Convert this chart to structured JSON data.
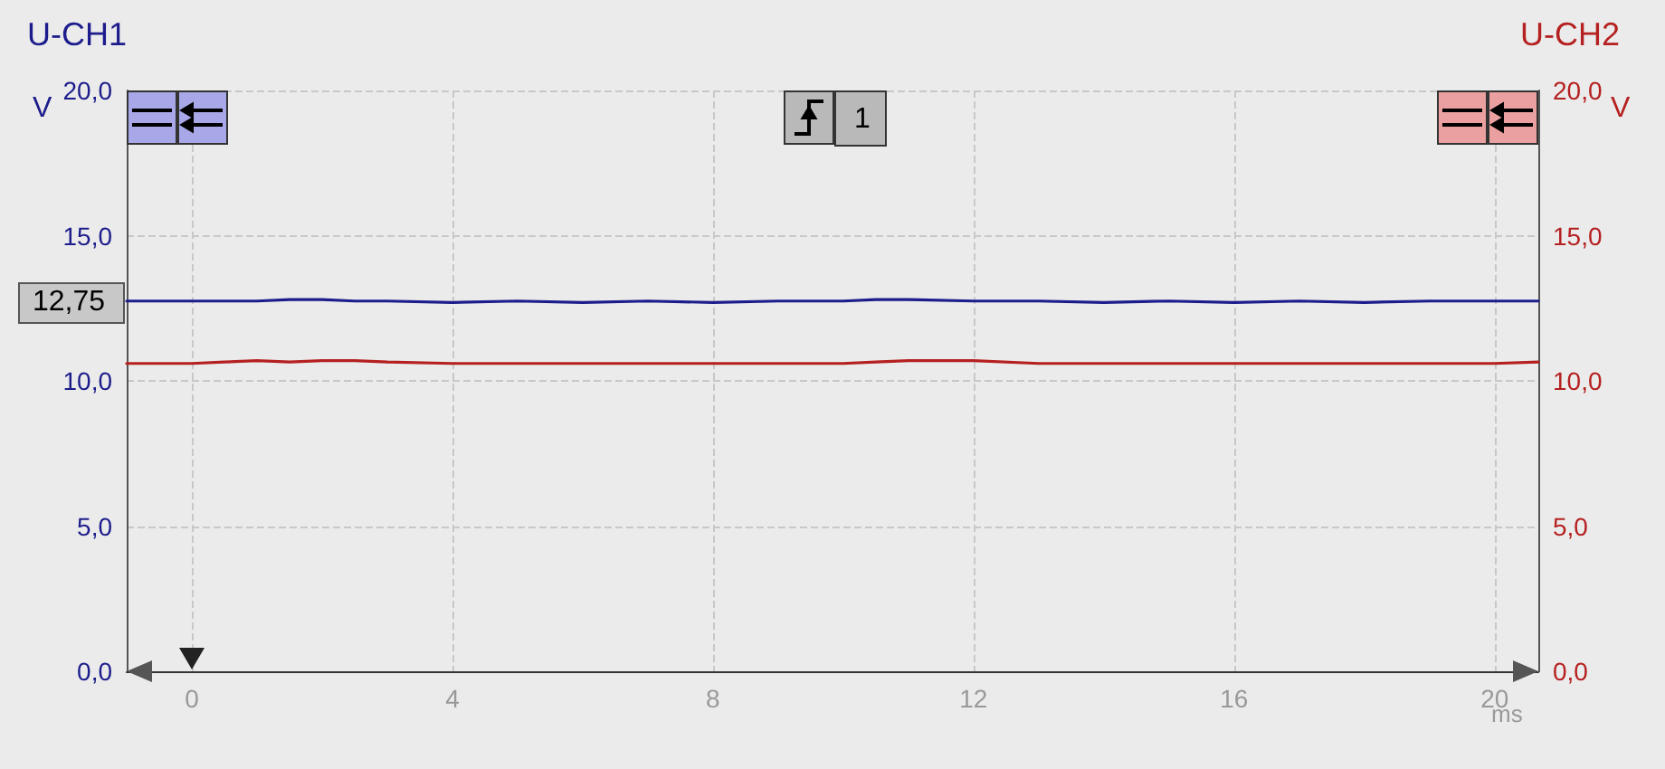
{
  "chart_data": {
    "type": "line",
    "ylabel": "U-CH1",
    "y2label": "U-CH2",
    "xlabel": "ms",
    "x": [
      -1,
      0,
      0.5,
      1,
      1.5,
      2,
      2.5,
      3,
      4,
      5,
      6,
      7,
      8,
      9,
      10,
      10.5,
      11,
      12,
      13,
      14,
      15,
      16,
      17,
      18,
      19,
      20,
      20.67
    ],
    "series": [
      {
        "color": "#1c1c8c",
        "values": [
          12.75,
          12.75,
          12.75,
          12.75,
          12.8,
          12.8,
          12.75,
          12.75,
          12.7,
          12.75,
          12.7,
          12.75,
          12.7,
          12.75,
          12.75,
          12.8,
          12.8,
          12.75,
          12.75,
          12.7,
          12.75,
          12.7,
          12.75,
          12.7,
          12.75,
          12.75,
          12.75
        ]
      },
      {
        "color": "#b52020",
        "values": [
          10.6,
          10.6,
          10.65,
          10.7,
          10.65,
          10.7,
          10.7,
          10.65,
          10.6,
          10.6,
          10.6,
          10.6,
          10.6,
          10.6,
          10.6,
          10.65,
          10.7,
          10.7,
          10.6,
          10.6,
          10.6,
          10.6,
          10.6,
          10.6,
          10.6,
          10.6,
          10.65
        ]
      }
    ],
    "xlim": [
      -1,
      20.67
    ],
    "xticks": [
      0,
      4,
      8,
      12,
      16,
      20
    ],
    "ylim": [
      0,
      20
    ],
    "yticks": [
      {
        "value": 0,
        "label": "0,0"
      },
      {
        "value": 5,
        "label": "5,0"
      },
      {
        "value": 10,
        "label": "10,0"
      },
      {
        "value": 15,
        "label": "15,0"
      },
      {
        "value": 20,
        "label": "20,0"
      }
    ],
    "y2lim": [
      0,
      20
    ],
    "y2ticks": [
      {
        "value": 0,
        "label": "0,0"
      },
      {
        "value": 5,
        "label": "5,0"
      },
      {
        "value": 10,
        "label": "10,0"
      },
      {
        "value": 15,
        "label": "15,0"
      },
      {
        "value": 20,
        "label": "20,0"
      }
    ],
    "annotations": [
      "V",
      "V",
      "1",
      "12,75"
    ],
    "grid": true,
    "marker": "none",
    "line_style": "solid"
  }
}
